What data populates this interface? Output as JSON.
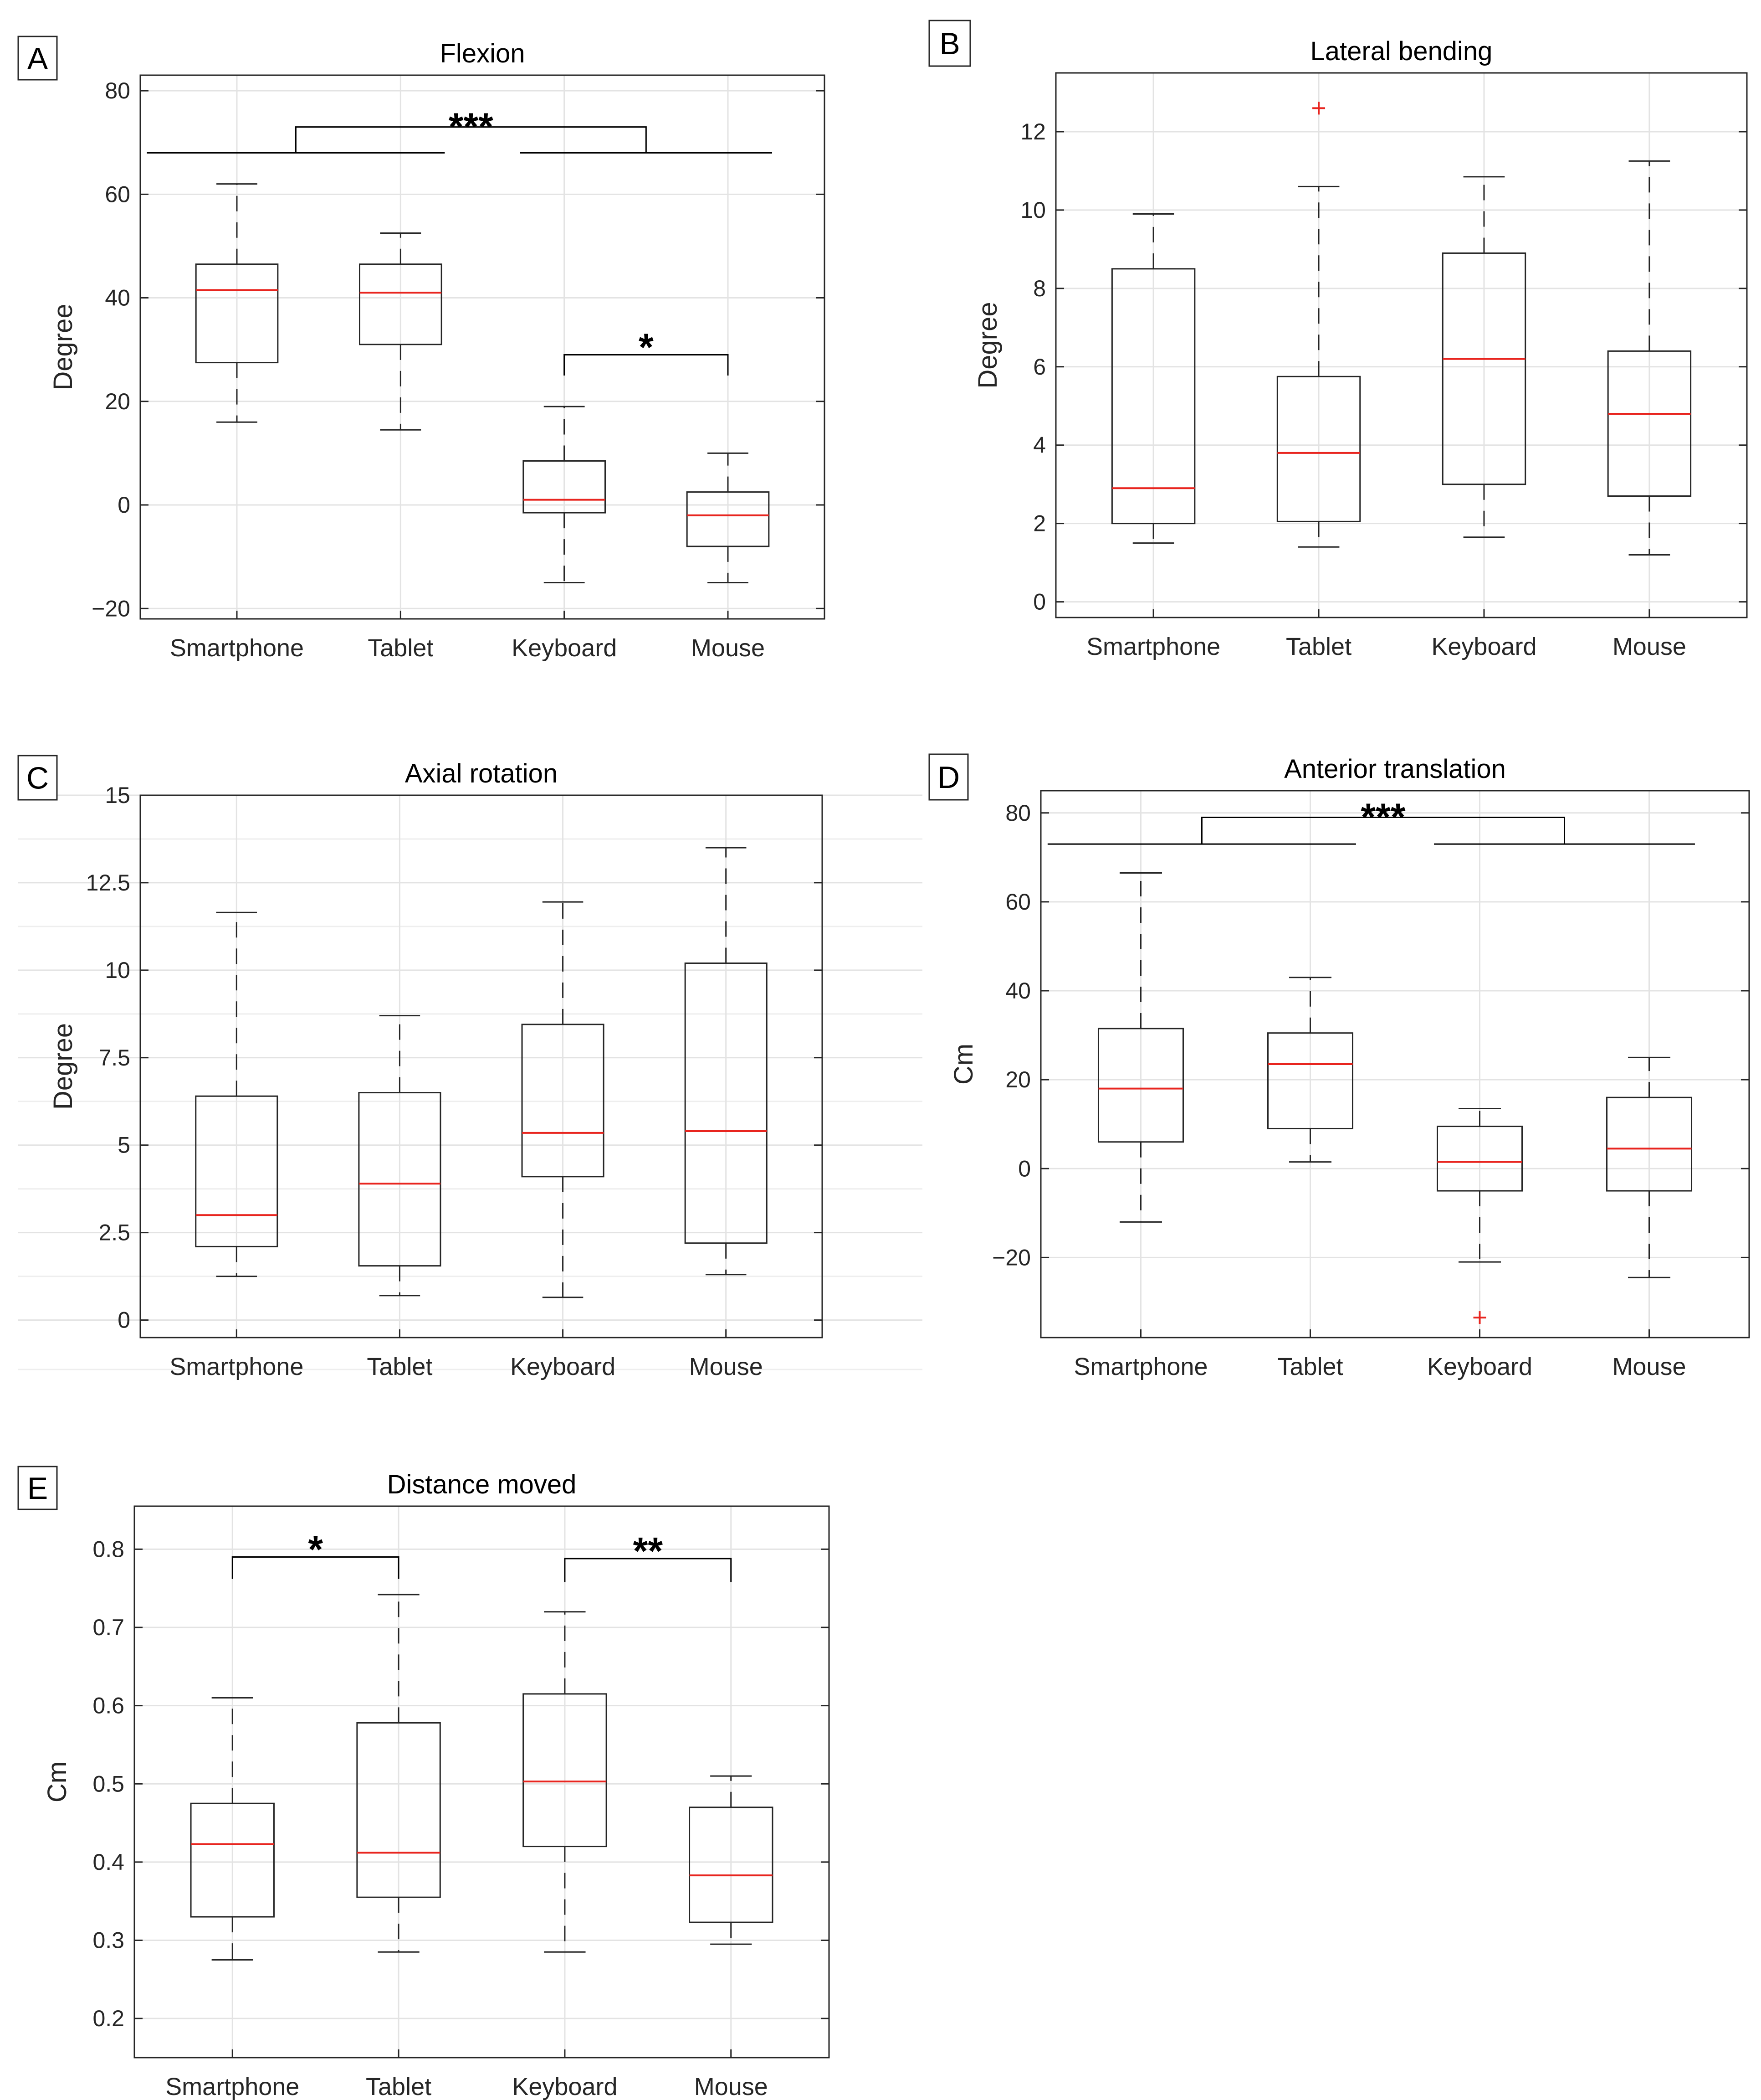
{
  "colors": {
    "box": "#262626",
    "median": "#e8251f",
    "outlier": "#e8251f",
    "grid": "#e3e3e3",
    "axis": "#262626"
  },
  "chart_data": [
    {
      "panel": "A",
      "type": "box",
      "title": "Flexion",
      "ylabel": "Degree",
      "xlabel": "",
      "ylim": [
        -22,
        83
      ],
      "yticks": [
        -20,
        0,
        20,
        40,
        60,
        80
      ],
      "ytick_labels": [
        "−20",
        "0",
        "20",
        "40",
        "60",
        "80"
      ],
      "grid": true,
      "categories": [
        "Smartphone",
        "Tablet",
        "Keyboard",
        "Mouse"
      ],
      "boxes": [
        {
          "whisker_low": 16,
          "q1": 27.5,
          "median": 41.5,
          "q3": 46.5,
          "whisker_high": 62,
          "outliers": []
        },
        {
          "whisker_low": 14.5,
          "q1": 31,
          "median": 41,
          "q3": 46.5,
          "whisker_high": 52.5,
          "outliers": []
        },
        {
          "whisker_low": -15,
          "q1": -1.5,
          "median": 1,
          "q3": 8.5,
          "whisker_high": 19,
          "outliers": []
        },
        {
          "whisker_low": -15,
          "q1": -8,
          "median": -2,
          "q3": 2.5,
          "whisker_high": 10,
          "outliers": []
        }
      ],
      "significance": [
        {
          "kind": "group",
          "left": [
            0,
            1
          ],
          "right": [
            2,
            3
          ],
          "level": 68,
          "top": 73,
          "label": "***"
        },
        {
          "kind": "pair",
          "from": 2,
          "to": 3,
          "level": 29,
          "drop": 25,
          "label": "*"
        }
      ]
    },
    {
      "panel": "B",
      "type": "box",
      "title": "Lateral bending",
      "ylabel": "Degree",
      "xlabel": "",
      "ylim": [
        -0.4,
        13.5
      ],
      "yticks": [
        0,
        2,
        4,
        6,
        8,
        10,
        12
      ],
      "ytick_labels": [
        "0",
        "2",
        "4",
        "6",
        "8",
        "10",
        "12"
      ],
      "grid": true,
      "categories": [
        "Smartphone",
        "Tablet",
        "Keyboard",
        "Mouse"
      ],
      "boxes": [
        {
          "whisker_low": 1.5,
          "q1": 2,
          "median": 2.9,
          "q3": 8.5,
          "whisker_high": 9.9,
          "outliers": []
        },
        {
          "whisker_low": 1.4,
          "q1": 2.05,
          "median": 3.8,
          "q3": 5.75,
          "whisker_high": 10.6,
          "outliers": [
            12.6
          ]
        },
        {
          "whisker_low": 1.65,
          "q1": 3,
          "median": 6.2,
          "q3": 8.9,
          "whisker_high": 10.85,
          "outliers": []
        },
        {
          "whisker_low": 1.2,
          "q1": 2.7,
          "median": 4.8,
          "q3": 6.4,
          "whisker_high": 11.25,
          "outliers": []
        }
      ],
      "significance": []
    },
    {
      "panel": "C",
      "type": "box",
      "title": "Axial rotation",
      "ylabel": "Degree",
      "xlabel": "",
      "ylim": [
        -0.5,
        15
      ],
      "yticks": [
        0,
        2.5,
        5,
        7.5,
        10,
        12.5,
        15
      ],
      "ytick_labels": [
        "0",
        "2.5",
        "5",
        "7.5",
        "10",
        "12.5",
        "15"
      ],
      "grid": true,
      "categories": [
        "Smartphone",
        "Tablet",
        "Keyboard",
        "Mouse"
      ],
      "boxes": [
        {
          "whisker_low": 1.25,
          "q1": 2.1,
          "median": 3,
          "q3": 6.4,
          "whisker_high": 11.65,
          "outliers": []
        },
        {
          "whisker_low": 0.7,
          "q1": 1.55,
          "median": 3.9,
          "q3": 6.5,
          "whisker_high": 8.7,
          "outliers": []
        },
        {
          "whisker_low": 0.65,
          "q1": 4.1,
          "median": 5.35,
          "q3": 8.45,
          "whisker_high": 11.95,
          "outliers": []
        },
        {
          "whisker_low": 1.3,
          "q1": 2.2,
          "median": 5.4,
          "q3": 10.2,
          "whisker_high": 13.5,
          "outliers": []
        }
      ],
      "significance": []
    },
    {
      "panel": "D",
      "type": "box",
      "title": "Anterior translation",
      "ylabel": "Cm",
      "xlabel": "",
      "ylim": [
        -38,
        85
      ],
      "yticks": [
        -20,
        0,
        20,
        40,
        60,
        80
      ],
      "ytick_labels": [
        "−20",
        "0",
        "20",
        "40",
        "60",
        "80"
      ],
      "grid": true,
      "categories": [
        "Smartphone",
        "Tablet",
        "Keyboard",
        "Mouse"
      ],
      "boxes": [
        {
          "whisker_low": -12,
          "q1": 6,
          "median": 18,
          "q3": 31.5,
          "whisker_high": 66.5,
          "outliers": []
        },
        {
          "whisker_low": 1.5,
          "q1": 9,
          "median": 23.5,
          "q3": 30.5,
          "whisker_high": 43,
          "outliers": []
        },
        {
          "whisker_low": -21,
          "q1": -5,
          "median": 1.5,
          "q3": 9.5,
          "whisker_high": 13.5,
          "outliers": [
            -33.5
          ]
        },
        {
          "whisker_low": -24.5,
          "q1": -5,
          "median": 4.5,
          "q3": 16,
          "whisker_high": 25,
          "outliers": []
        }
      ],
      "significance": [
        {
          "kind": "group",
          "left": [
            0,
            1
          ],
          "right": [
            2,
            3
          ],
          "level": 73,
          "top": 79,
          "label": "***"
        }
      ]
    },
    {
      "panel": "E",
      "type": "box",
      "title": "Distance moved",
      "ylabel": "Cm",
      "xlabel": "",
      "ylim": [
        0.15,
        0.855
      ],
      "yticks": [
        0.2,
        0.3,
        0.4,
        0.5,
        0.6,
        0.7,
        0.8
      ],
      "ytick_labels": [
        "0.2",
        "0.3",
        "0.4",
        "0.5",
        "0.6",
        "0.7",
        "0.8"
      ],
      "grid": true,
      "categories": [
        "Smartphone",
        "Tablet",
        "Keyboard",
        "Mouse"
      ],
      "boxes": [
        {
          "whisker_low": 0.275,
          "q1": 0.33,
          "median": 0.423,
          "q3": 0.475,
          "whisker_high": 0.61,
          "outliers": []
        },
        {
          "whisker_low": 0.285,
          "q1": 0.355,
          "median": 0.412,
          "q3": 0.578,
          "whisker_high": 0.742,
          "outliers": []
        },
        {
          "whisker_low": 0.285,
          "q1": 0.42,
          "median": 0.503,
          "q3": 0.615,
          "whisker_high": 0.72,
          "outliers": []
        },
        {
          "whisker_low": 0.295,
          "q1": 0.323,
          "median": 0.383,
          "q3": 0.47,
          "whisker_high": 0.51,
          "outliers": []
        }
      ],
      "significance": [
        {
          "kind": "pair",
          "from": 0,
          "to": 1,
          "level": 0.79,
          "drop": 0.762,
          "label": "*"
        },
        {
          "kind": "pair",
          "from": 2,
          "to": 3,
          "level": 0.788,
          "drop": 0.758,
          "label": "**"
        }
      ]
    }
  ]
}
